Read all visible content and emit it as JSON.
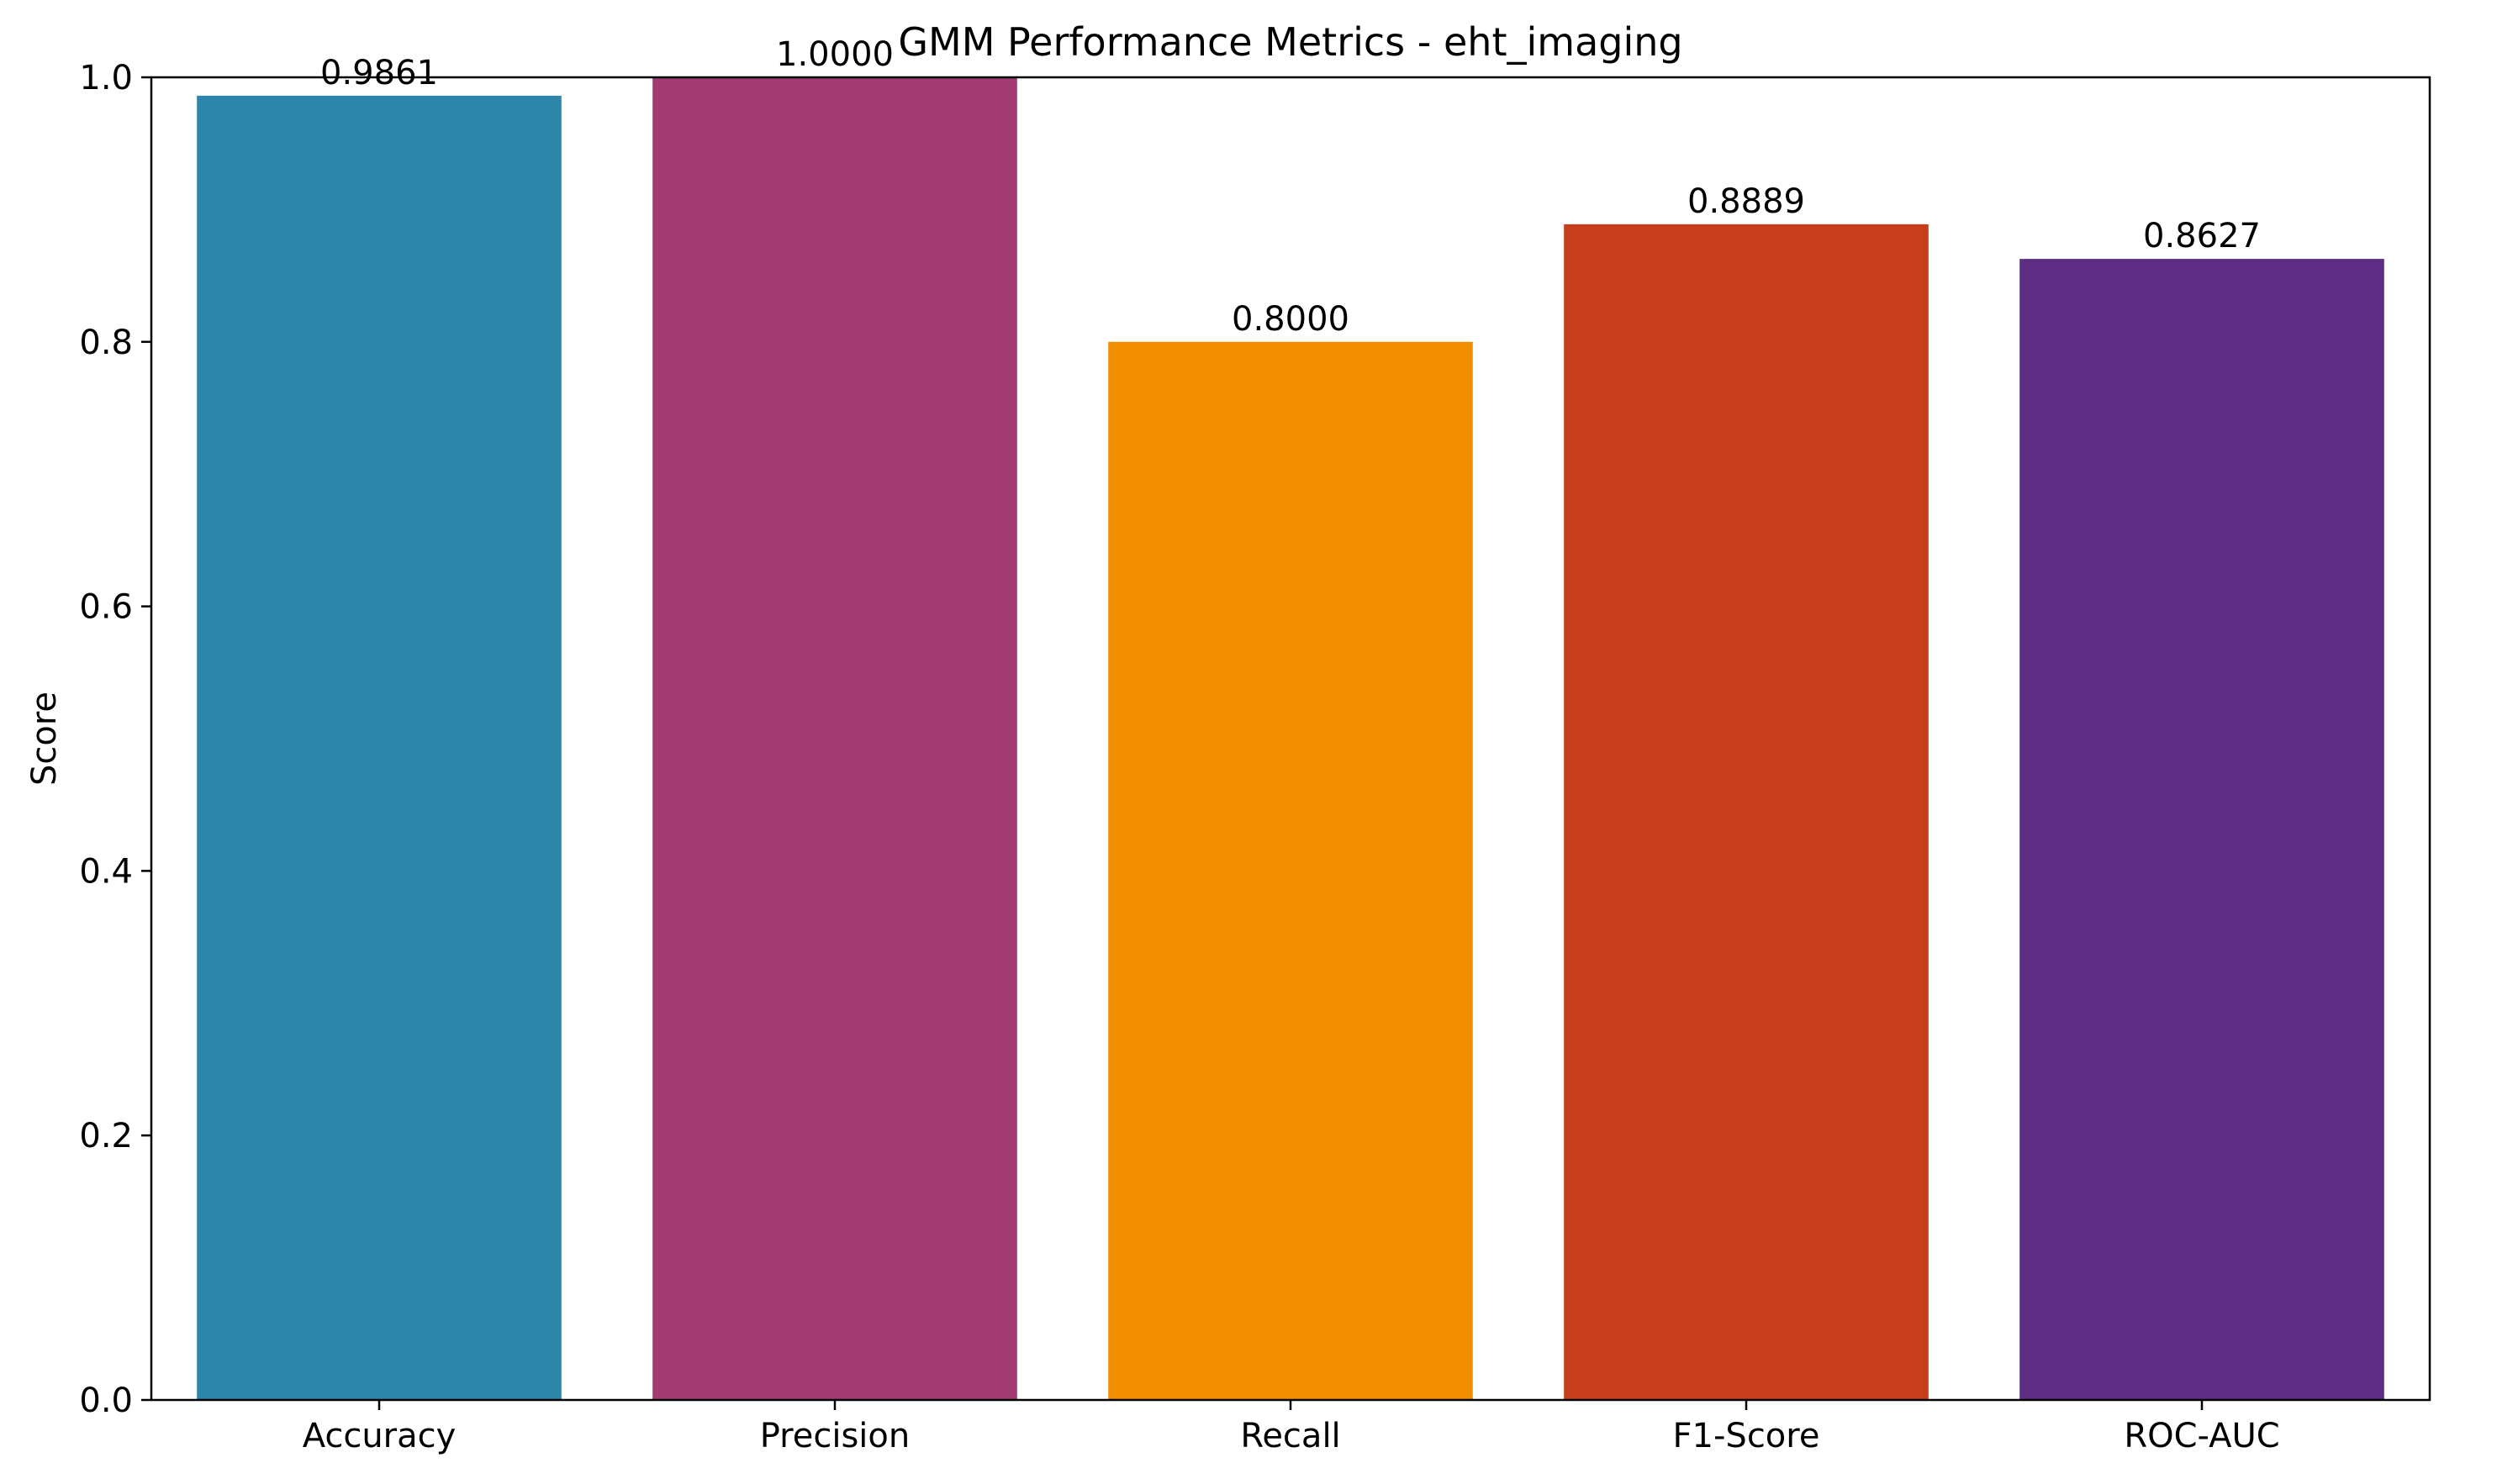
{
  "chart_data": {
    "type": "bar",
    "title": "GMM Performance Metrics - eht_imaging",
    "xlabel": "",
    "ylabel": "Score",
    "ylim": [
      0,
      1.0
    ],
    "yticks": [
      "0.0",
      "0.2",
      "0.4",
      "0.6",
      "0.8",
      "1.0"
    ],
    "categories": [
      "Accuracy",
      "Precision",
      "Recall",
      "F1-Score",
      "ROC-AUC"
    ],
    "values": [
      0.9861,
      1.0,
      0.8,
      0.8889,
      0.8627
    ],
    "value_labels": [
      "0.9861",
      "1.0000",
      "0.8000",
      "0.8889",
      "0.8627"
    ],
    "colors": [
      "#2E86AB",
      "#A23B72",
      "#F18F01",
      "#C73E1D",
      "#5C2D82"
    ],
    "grid": false,
    "legend": "none"
  }
}
